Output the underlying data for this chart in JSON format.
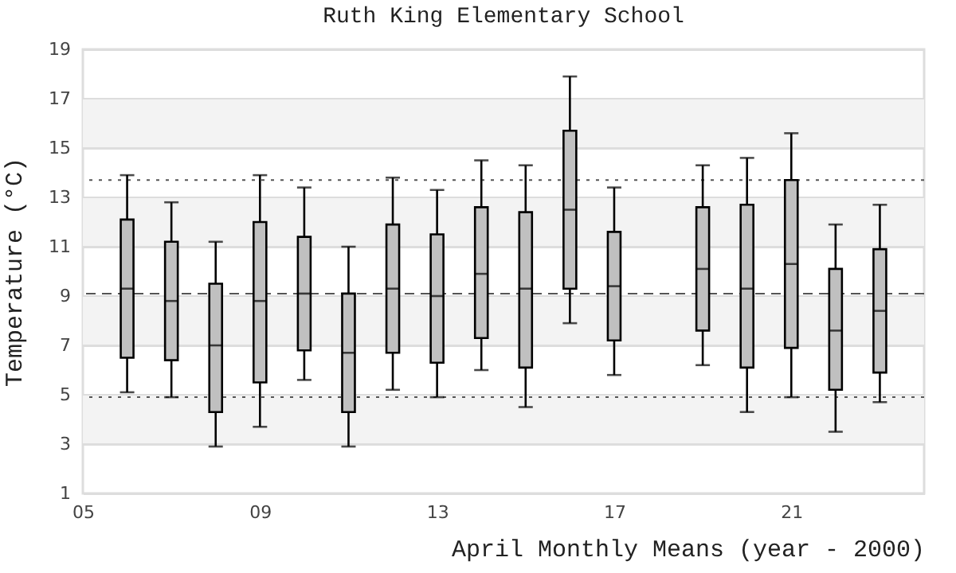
{
  "chart_data": {
    "type": "box",
    "title": "Ruth King Elementary School",
    "xlabel": "April Monthly Means (year - 2000)",
    "ylabel": "Temperature (°C)",
    "x": [
      6,
      7,
      8,
      9,
      10,
      11,
      12,
      13,
      14,
      15,
      16,
      17,
      19,
      20,
      21,
      22,
      23
    ],
    "color": "#c0c0c0",
    "boxes": [
      {
        "low": 5.1,
        "q1": 6.5,
        "median": 9.3,
        "q3": 12.1,
        "high": 13.9
      },
      {
        "low": 4.9,
        "q1": 6.4,
        "median": 8.8,
        "q3": 11.2,
        "high": 12.8
      },
      {
        "low": 2.9,
        "q1": 4.3,
        "median": 7.0,
        "q3": 9.5,
        "high": 11.2
      },
      {
        "low": 3.7,
        "q1": 5.5,
        "median": 8.8,
        "q3": 12.0,
        "high": 13.9
      },
      {
        "low": 5.6,
        "q1": 6.8,
        "median": 9.1,
        "q3": 11.4,
        "high": 13.4
      },
      {
        "low": 2.9,
        "q1": 4.3,
        "median": 6.7,
        "q3": 9.1,
        "high": 11.0
      },
      {
        "low": 5.2,
        "q1": 6.7,
        "median": 9.3,
        "q3": 11.9,
        "high": 13.8
      },
      {
        "low": 4.9,
        "q1": 6.3,
        "median": 9.0,
        "q3": 11.5,
        "high": 13.3
      },
      {
        "low": 6.0,
        "q1": 7.3,
        "median": 9.9,
        "q3": 12.6,
        "high": 14.5
      },
      {
        "low": 4.5,
        "q1": 6.1,
        "median": 9.3,
        "q3": 12.4,
        "high": 14.3
      },
      {
        "low": 7.9,
        "q1": 9.3,
        "median": 12.5,
        "q3": 15.7,
        "high": 17.9
      },
      {
        "low": 5.8,
        "q1": 7.2,
        "median": 9.4,
        "q3": 11.6,
        "high": 13.4
      },
      {
        "low": 6.2,
        "q1": 7.6,
        "median": 10.1,
        "q3": 12.6,
        "high": 14.3
      },
      {
        "low": 4.3,
        "q1": 6.1,
        "median": 9.3,
        "q3": 12.7,
        "high": 14.6
      },
      {
        "low": 4.9,
        "q1": 6.9,
        "median": 10.3,
        "q3": 13.7,
        "high": 15.6
      },
      {
        "low": 3.5,
        "q1": 5.2,
        "median": 7.6,
        "q3": 10.1,
        "high": 11.9
      },
      {
        "low": 4.7,
        "q1": 5.9,
        "median": 8.4,
        "q3": 10.9,
        "high": 12.7
      }
    ],
    "xlim": [
      5,
      24
    ],
    "xticks": [
      {
        "value": 5,
        "label": "05"
      },
      {
        "value": 9,
        "label": "09"
      },
      {
        "value": 13,
        "label": "13"
      },
      {
        "value": 17,
        "label": "17"
      },
      {
        "value": 21,
        "label": "21"
      }
    ],
    "ylim": [
      1,
      19
    ],
    "yticks": [
      1,
      3,
      5,
      7,
      9,
      11,
      13,
      15,
      17,
      19
    ],
    "grid": "y",
    "ref_lines": [
      {
        "axis": "y",
        "value": 13.7,
        "line_style": "dotted",
        "color": "#555555"
      },
      {
        "axis": "y",
        "value": 9.1,
        "line_style": "dashed",
        "color": "#555555"
      },
      {
        "axis": "y",
        "value": 4.9,
        "line_style": "dotted",
        "color": "#555555"
      }
    ],
    "bands": [
      {
        "axis": "y",
        "from": 3,
        "to": 5,
        "color": "#f3f3f3"
      },
      {
        "axis": "y",
        "from": 7,
        "to": 9,
        "color": "#f3f3f3"
      },
      {
        "axis": "y",
        "from": 11,
        "to": 13,
        "color": "#f3f3f3"
      },
      {
        "axis": "y",
        "from": 15,
        "to": 17,
        "color": "#f3f3f3"
      }
    ]
  }
}
